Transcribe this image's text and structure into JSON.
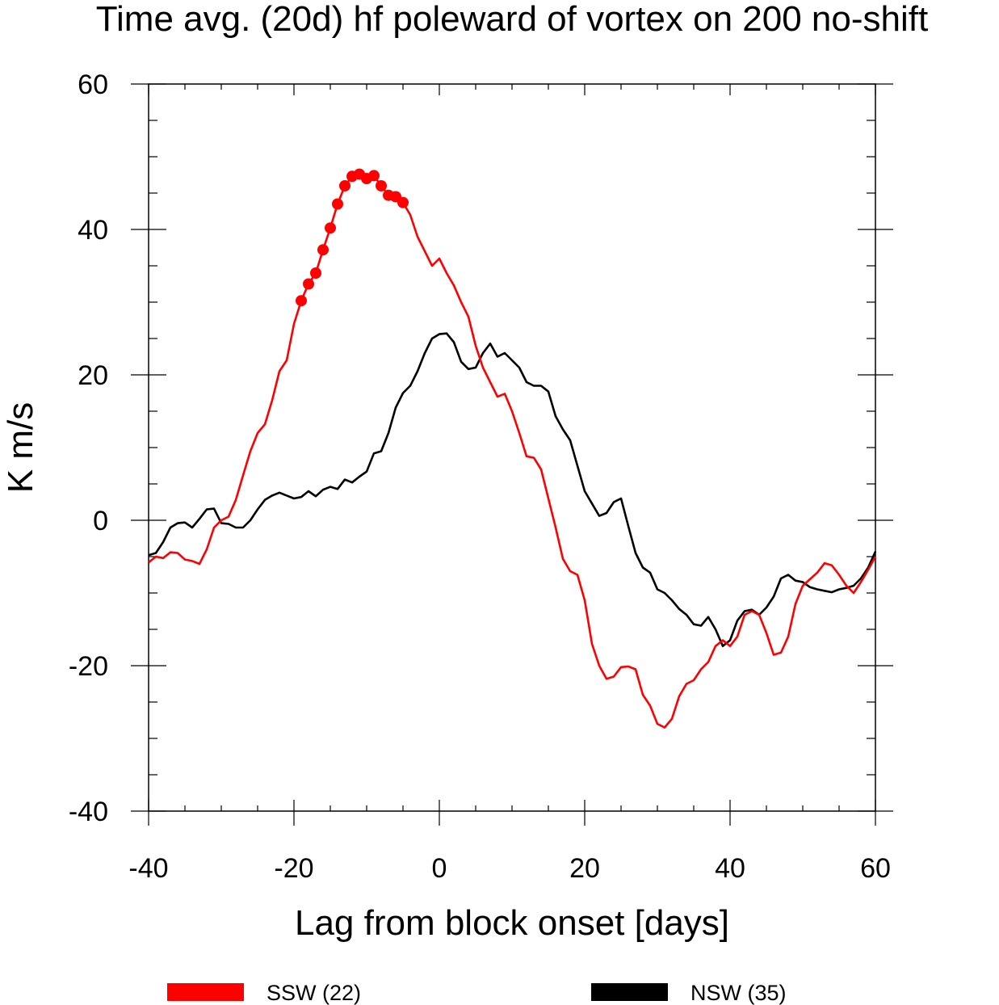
{
  "chart_data": {
    "type": "line",
    "title": "Time avg. (20d) hf poleward of vortex on 200 no-shift",
    "xlabel": "Lag from block onset [days]",
    "ylabel": "K m/s",
    "xlim": [
      -40,
      60
    ],
    "ylim": [
      -40,
      60
    ],
    "x_ticks": [
      -40,
      -20,
      0,
      20,
      40,
      60
    ],
    "y_ticks": [
      -40,
      -20,
      0,
      20,
      40,
      60
    ],
    "x_tick_labels": [
      "-40",
      "-20",
      "0",
      "20",
      "40",
      "60"
    ],
    "y_tick_labels": [
      "-40",
      "-20",
      "0",
      "20",
      "40",
      "60"
    ],
    "grid": false,
    "legend_position": "bottom",
    "series": [
      {
        "name": "SSW (22)",
        "color": "#ff0000",
        "x": [
          -40,
          -39,
          -38,
          -37,
          -36,
          -35,
          -34,
          -33,
          -32,
          -31,
          -30,
          -29,
          -28,
          -27,
          -26,
          -25,
          -24,
          -23,
          -22,
          -21,
          -20,
          -19,
          -18,
          -17,
          -16,
          -15,
          -14,
          -13,
          -12,
          -11,
          -10,
          -9,
          -8,
          -7,
          -6,
          -5,
          -4,
          -3,
          -2,
          -1,
          0,
          1,
          2,
          3,
          4,
          5,
          6,
          7,
          8,
          9,
          10,
          11,
          12,
          13,
          14,
          15,
          16,
          17,
          18,
          19,
          20,
          21,
          22,
          23,
          24,
          25,
          26,
          27,
          28,
          29,
          30,
          31,
          32,
          33,
          34,
          35,
          36,
          37,
          38,
          39,
          40,
          41,
          42,
          43,
          44,
          45,
          46,
          47,
          48,
          49,
          50,
          51,
          52,
          53,
          54,
          55,
          56,
          57,
          58,
          59,
          60
        ],
        "values": [
          -5.8,
          -5.0,
          -5.2,
          -4.4,
          -4.5,
          -5.4,
          -5.6,
          -6.0,
          -4.0,
          -1.0,
          0.0,
          0.5,
          2.8,
          6.2,
          9.5,
          12.0,
          13.2,
          16.5,
          20.5,
          22.0,
          27.0,
          30.2,
          32.5,
          34.0,
          37.2,
          40.2,
          43.5,
          46.0,
          47.3,
          47.6,
          47.0,
          47.4,
          46.0,
          44.7,
          44.5,
          43.7,
          42.0,
          39.0,
          37.0,
          35.0,
          36.0,
          34.0,
          32.3,
          30.0,
          28.0,
          24.0,
          21.0,
          19.0,
          17.0,
          17.4,
          15.0,
          12.0,
          8.8,
          8.6,
          7.0,
          3.0,
          -1.0,
          -5.3,
          -7.0,
          -7.5,
          -11.0,
          -17.0,
          -20.0,
          -21.8,
          -21.5,
          -20.2,
          -20.1,
          -20.5,
          -24.0,
          -25.5,
          -28.0,
          -28.5,
          -27.3,
          -24.2,
          -22.5,
          -22.0,
          -20.5,
          -19.5,
          -17.3,
          -16.5,
          -17.3,
          -16.0,
          -13.0,
          -12.5,
          -13.0,
          -15.5,
          -18.5,
          -18.2,
          -16.0,
          -11.5,
          -9.0,
          -8.1,
          -7.2,
          -5.9,
          -6.2,
          -7.5,
          -9.0,
          -10.0,
          -8.5,
          -6.8,
          -5.0
        ]
      },
      {
        "name": "NSW (35)",
        "color": "#000000",
        "x": [
          -40,
          -39,
          -38,
          -37,
          -36,
          -35,
          -34,
          -33,
          -32,
          -31,
          -30,
          -29,
          -28,
          -27,
          -26,
          -25,
          -24,
          -23,
          -22,
          -21,
          -20,
          -19,
          -18,
          -17,
          -16,
          -15,
          -14,
          -13,
          -12,
          -11,
          -10,
          -9,
          -8,
          -7,
          -6,
          -5,
          -4,
          -3,
          -2,
          -1,
          0,
          1,
          2,
          3,
          4,
          5,
          6,
          7,
          8,
          9,
          10,
          11,
          12,
          13,
          14,
          15,
          16,
          17,
          18,
          19,
          20,
          21,
          22,
          23,
          24,
          25,
          26,
          27,
          28,
          29,
          30,
          31,
          32,
          33,
          34,
          35,
          36,
          37,
          38,
          39,
          40,
          41,
          42,
          43,
          44,
          45,
          46,
          47,
          48,
          49,
          50,
          51,
          52,
          53,
          54,
          55,
          56,
          57,
          58,
          59,
          60
        ],
        "values": [
          -4.8,
          -4.5,
          -3.0,
          -1.0,
          -0.4,
          -0.3,
          -1.0,
          0.2,
          1.5,
          1.6,
          -0.4,
          -0.5,
          -1.0,
          -1.0,
          0.0,
          1.5,
          2.8,
          3.4,
          3.8,
          3.4,
          3.0,
          3.2,
          4.0,
          3.3,
          4.2,
          4.6,
          4.3,
          5.6,
          5.2,
          6.0,
          6.7,
          9.2,
          9.5,
          12.0,
          15.5,
          17.5,
          18.5,
          20.5,
          23.0,
          25.0,
          25.6,
          25.7,
          24.5,
          21.8,
          20.8,
          21.0,
          23.0,
          24.3,
          22.5,
          23.0,
          22.0,
          21.0,
          19.0,
          18.5,
          18.5,
          17.7,
          14.3,
          12.5,
          11.0,
          7.5,
          4.0,
          2.3,
          0.6,
          1.0,
          2.5,
          3.0,
          -0.8,
          -4.5,
          -6.5,
          -7.2,
          -9.5,
          -10.0,
          -11.0,
          -12.2,
          -13.0,
          -14.3,
          -14.5,
          -13.3,
          -15.0,
          -17.3,
          -16.5,
          -13.8,
          -12.5,
          -12.3,
          -13.0,
          -12.0,
          -10.5,
          -8.0,
          -7.5,
          -8.3,
          -8.5,
          -9.2,
          -9.5,
          -9.7,
          -9.9,
          -9.5,
          -9.3,
          -9.0,
          -8.0,
          -6.5,
          -4.3
        ]
      }
    ],
    "markers": {
      "series": "SSW (22)",
      "color": "#ff0000",
      "x": [
        -19,
        -18,
        -17,
        -16,
        -15,
        -14,
        -13,
        -12,
        -11,
        -10,
        -9,
        -8,
        -7,
        -6,
        -5
      ],
      "values": [
        30.2,
        32.5,
        34.0,
        37.2,
        40.2,
        43.5,
        46.0,
        47.3,
        47.6,
        47.0,
        47.4,
        46.0,
        44.7,
        44.5,
        43.7
      ]
    }
  }
}
